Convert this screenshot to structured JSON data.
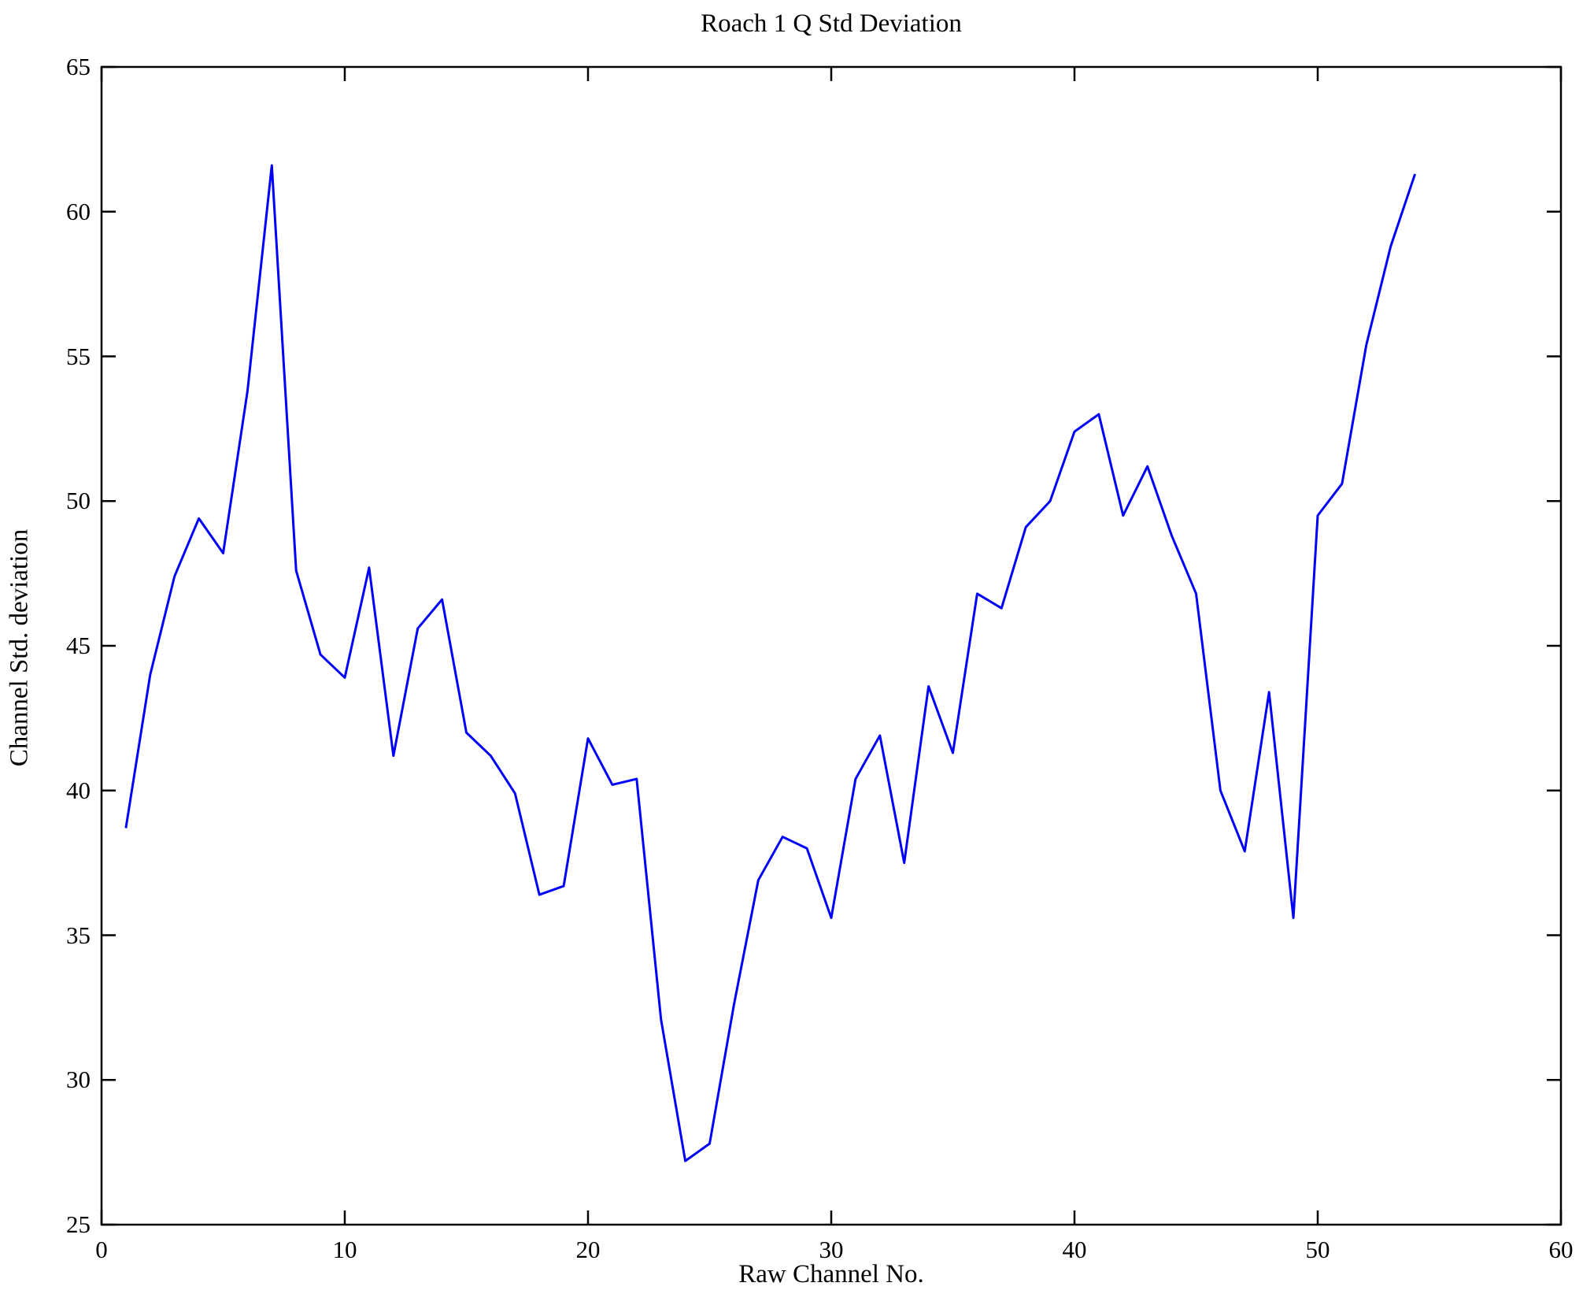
{
  "figure": {
    "title": "Roach 1 Q Std Deviation",
    "background_color": "#ffffff",
    "axis_color": "#000000"
  },
  "chart_data": {
    "type": "line",
    "title": "Roach 1 Q Std Deviation",
    "xlabel": "Raw Channel No.",
    "ylabel": "Channel Std. deviation",
    "xlim": [
      0,
      60
    ],
    "ylim": [
      25,
      65
    ],
    "xticks": [
      0,
      10,
      20,
      30,
      40,
      50,
      60
    ],
    "yticks": [
      25,
      30,
      35,
      40,
      45,
      50,
      55,
      60,
      65
    ],
    "grid": false,
    "legend": "none",
    "line_color": "#0000ff",
    "x": [
      1,
      2,
      3,
      4,
      5,
      6,
      7,
      8,
      9,
      10,
      11,
      12,
      13,
      14,
      15,
      16,
      17,
      18,
      19,
      20,
      21,
      22,
      23,
      24,
      25,
      26,
      27,
      28,
      29,
      30,
      31,
      32,
      33,
      34,
      35,
      36,
      37,
      38,
      39,
      40,
      41,
      42,
      43,
      44,
      45,
      46,
      47,
      48,
      49,
      50,
      51,
      52,
      53,
      54
    ],
    "values": [
      38.7,
      44.0,
      47.4,
      49.4,
      48.2,
      53.8,
      61.6,
      47.6,
      44.7,
      43.9,
      47.7,
      41.2,
      45.6,
      46.6,
      42.0,
      41.2,
      39.9,
      36.4,
      36.7,
      41.8,
      40.2,
      40.4,
      32.1,
      27.2,
      27.8,
      32.6,
      36.9,
      38.4,
      38.0,
      35.6,
      40.4,
      41.9,
      37.5,
      43.6,
      41.3,
      46.8,
      46.3,
      49.1,
      50.0,
      52.4,
      53.0,
      49.5,
      51.2,
      48.8,
      46.8,
      40.0,
      37.9,
      43.4,
      35.6,
      49.5,
      50.6,
      55.4,
      58.8,
      61.3
    ]
  }
}
